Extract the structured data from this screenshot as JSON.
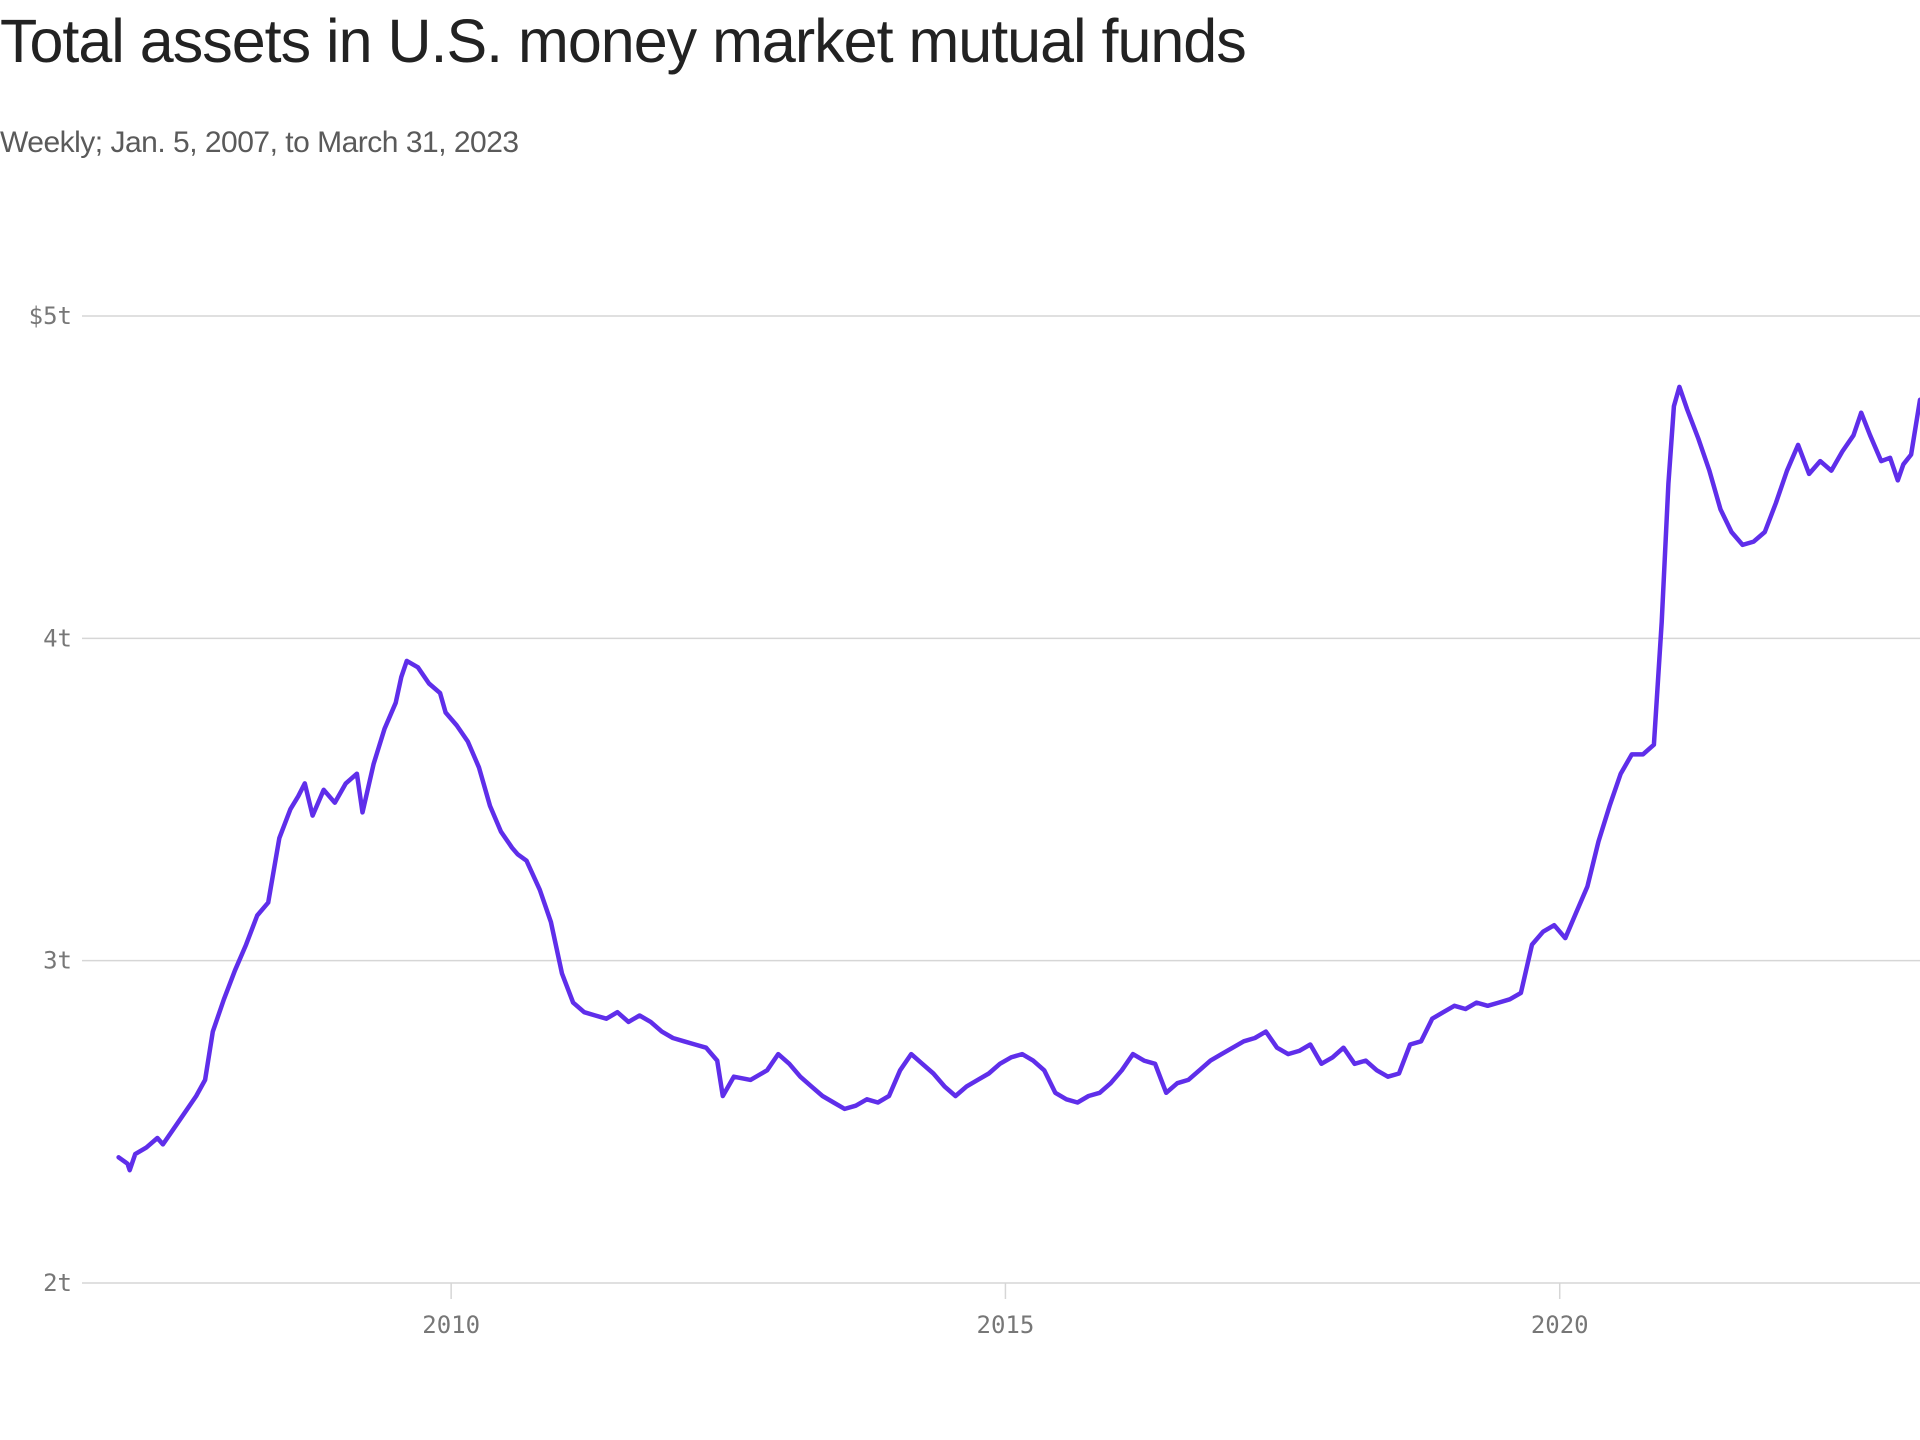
{
  "chart_data": {
    "type": "line",
    "title": "Total assets in U.S. money market mutual funds",
    "subtitle": "Weekly; Jan. 5, 2007, to March 31, 2023",
    "xlabel": "",
    "ylabel": "",
    "ylim": [
      2,
      5
    ],
    "xlim": [
      2006.67,
      2023.25
    ],
    "grid": "horizontal",
    "legend": "none",
    "line_color": "#5f2eea",
    "y_ticks": [
      {
        "value": 5,
        "label": "$5t"
      },
      {
        "value": 4,
        "label": "4t"
      },
      {
        "value": 3,
        "label": "3t"
      },
      {
        "value": 2,
        "label": "2t"
      }
    ],
    "x_ticks": [
      {
        "value": 2010,
        "label": "2010"
      },
      {
        "value": 2015,
        "label": "2015"
      },
      {
        "value": 2020,
        "label": "2020"
      }
    ],
    "series": [
      {
        "values": [
          [
            2007.0,
            2.39
          ],
          [
            2007.08,
            2.37
          ],
          [
            2007.1,
            2.35
          ],
          [
            2007.15,
            2.4
          ],
          [
            2007.25,
            2.42
          ],
          [
            2007.35,
            2.45
          ],
          [
            2007.4,
            2.43
          ],
          [
            2007.5,
            2.48
          ],
          [
            2007.6,
            2.53
          ],
          [
            2007.7,
            2.58
          ],
          [
            2007.78,
            2.63
          ],
          [
            2007.85,
            2.78
          ],
          [
            2007.95,
            2.88
          ],
          [
            2008.05,
            2.97
          ],
          [
            2008.15,
            3.05
          ],
          [
            2008.25,
            3.14
          ],
          [
            2008.35,
            3.18
          ],
          [
            2008.45,
            3.38
          ],
          [
            2008.55,
            3.47
          ],
          [
            2008.62,
            3.51
          ],
          [
            2008.68,
            3.55
          ],
          [
            2008.75,
            3.45
          ],
          [
            2008.85,
            3.53
          ],
          [
            2008.95,
            3.49
          ],
          [
            2009.05,
            3.55
          ],
          [
            2009.15,
            3.58
          ],
          [
            2009.2,
            3.46
          ],
          [
            2009.3,
            3.61
          ],
          [
            2009.4,
            3.72
          ],
          [
            2009.5,
            3.8
          ],
          [
            2009.55,
            3.88
          ],
          [
            2009.6,
            3.93
          ],
          [
            2009.7,
            3.91
          ],
          [
            2009.8,
            3.86
          ],
          [
            2009.9,
            3.83
          ],
          [
            2009.95,
            3.77
          ],
          [
            2010.05,
            3.73
          ],
          [
            2010.15,
            3.68
          ],
          [
            2010.25,
            3.6
          ],
          [
            2010.35,
            3.48
          ],
          [
            2010.45,
            3.4
          ],
          [
            2010.55,
            3.35
          ],
          [
            2010.6,
            3.33
          ],
          [
            2010.68,
            3.31
          ],
          [
            2010.8,
            3.22
          ],
          [
            2010.9,
            3.12
          ],
          [
            2011.0,
            2.96
          ],
          [
            2011.1,
            2.87
          ],
          [
            2011.2,
            2.84
          ],
          [
            2011.3,
            2.83
          ],
          [
            2011.4,
            2.82
          ],
          [
            2011.5,
            2.84
          ],
          [
            2011.6,
            2.81
          ],
          [
            2011.7,
            2.83
          ],
          [
            2011.8,
            2.81
          ],
          [
            2011.9,
            2.78
          ],
          [
            2012.0,
            2.76
          ],
          [
            2012.1,
            2.75
          ],
          [
            2012.2,
            2.74
          ],
          [
            2012.3,
            2.73
          ],
          [
            2012.4,
            2.69
          ],
          [
            2012.45,
            2.58
          ],
          [
            2012.55,
            2.64
          ],
          [
            2012.7,
            2.63
          ],
          [
            2012.85,
            2.66
          ],
          [
            2012.95,
            2.71
          ],
          [
            2013.05,
            2.68
          ],
          [
            2013.15,
            2.64
          ],
          [
            2013.25,
            2.61
          ],
          [
            2013.35,
            2.58
          ],
          [
            2013.45,
            2.56
          ],
          [
            2013.55,
            2.54
          ],
          [
            2013.65,
            2.55
          ],
          [
            2013.75,
            2.57
          ],
          [
            2013.85,
            2.56
          ],
          [
            2013.95,
            2.58
          ],
          [
            2014.05,
            2.66
          ],
          [
            2014.15,
            2.71
          ],
          [
            2014.25,
            2.68
          ],
          [
            2014.35,
            2.65
          ],
          [
            2014.45,
            2.61
          ],
          [
            2014.55,
            2.58
          ],
          [
            2014.65,
            2.61
          ],
          [
            2014.75,
            2.63
          ],
          [
            2014.85,
            2.65
          ],
          [
            2014.95,
            2.68
          ],
          [
            2015.05,
            2.7
          ],
          [
            2015.15,
            2.71
          ],
          [
            2015.25,
            2.69
          ],
          [
            2015.35,
            2.66
          ],
          [
            2015.45,
            2.59
          ],
          [
            2015.55,
            2.57
          ],
          [
            2015.65,
            2.56
          ],
          [
            2015.75,
            2.58
          ],
          [
            2015.85,
            2.59
          ],
          [
            2015.95,
            2.62
          ],
          [
            2016.05,
            2.66
          ],
          [
            2016.15,
            2.71
          ],
          [
            2016.25,
            2.69
          ],
          [
            2016.35,
            2.68
          ],
          [
            2016.45,
            2.59
          ],
          [
            2016.55,
            2.62
          ],
          [
            2016.65,
            2.63
          ],
          [
            2016.75,
            2.66
          ],
          [
            2016.85,
            2.69
          ],
          [
            2016.95,
            2.71
          ],
          [
            2017.05,
            2.73
          ],
          [
            2017.15,
            2.75
          ],
          [
            2017.25,
            2.76
          ],
          [
            2017.35,
            2.78
          ],
          [
            2017.45,
            2.73
          ],
          [
            2017.55,
            2.71
          ],
          [
            2017.65,
            2.72
          ],
          [
            2017.75,
            2.74
          ],
          [
            2017.85,
            2.68
          ],
          [
            2017.95,
            2.7
          ],
          [
            2018.05,
            2.73
          ],
          [
            2018.15,
            2.68
          ],
          [
            2018.25,
            2.69
          ],
          [
            2018.35,
            2.66
          ],
          [
            2018.45,
            2.64
          ],
          [
            2018.55,
            2.65
          ],
          [
            2018.65,
            2.74
          ],
          [
            2018.75,
            2.75
          ],
          [
            2018.85,
            2.82
          ],
          [
            2018.95,
            2.84
          ],
          [
            2019.05,
            2.86
          ],
          [
            2019.15,
            2.85
          ],
          [
            2019.25,
            2.87
          ],
          [
            2019.35,
            2.86
          ],
          [
            2019.45,
            2.87
          ],
          [
            2019.55,
            2.88
          ],
          [
            2019.65,
            2.9
          ],
          [
            2019.75,
            3.05
          ],
          [
            2019.85,
            3.09
          ],
          [
            2019.95,
            3.11
          ],
          [
            2020.05,
            3.07
          ],
          [
            2020.15,
            3.15
          ],
          [
            2020.25,
            3.23
          ],
          [
            2020.35,
            3.37
          ],
          [
            2020.45,
            3.48
          ],
          [
            2020.55,
            3.58
          ],
          [
            2020.65,
            3.64
          ],
          [
            2020.75,
            3.64
          ],
          [
            2020.85,
            3.67
          ],
          [
            2020.92,
            4.05
          ],
          [
            2020.98,
            4.48
          ],
          [
            2021.03,
            4.72
          ],
          [
            2021.08,
            4.78
          ],
          [
            2021.15,
            4.71
          ],
          [
            2021.25,
            4.62
          ],
          [
            2021.35,
            4.52
          ],
          [
            2021.45,
            4.4
          ],
          [
            2021.55,
            4.33
          ],
          [
            2021.65,
            4.29
          ],
          [
            2021.75,
            4.3
          ],
          [
            2021.85,
            4.33
          ],
          [
            2021.95,
            4.42
          ],
          [
            2022.05,
            4.52
          ],
          [
            2022.15,
            4.6
          ],
          [
            2022.25,
            4.51
          ],
          [
            2022.35,
            4.55
          ],
          [
            2022.45,
            4.52
          ],
          [
            2022.55,
            4.58
          ],
          [
            2022.65,
            4.63
          ],
          [
            2022.72,
            4.7
          ],
          [
            2022.8,
            4.63
          ],
          [
            2022.9,
            4.55
          ],
          [
            2022.98,
            4.56
          ],
          [
            2023.05,
            4.49
          ],
          [
            2023.1,
            4.54
          ],
          [
            2023.17,
            4.57
          ],
          [
            2023.25,
            4.74
          ]
        ]
      }
    ]
  }
}
